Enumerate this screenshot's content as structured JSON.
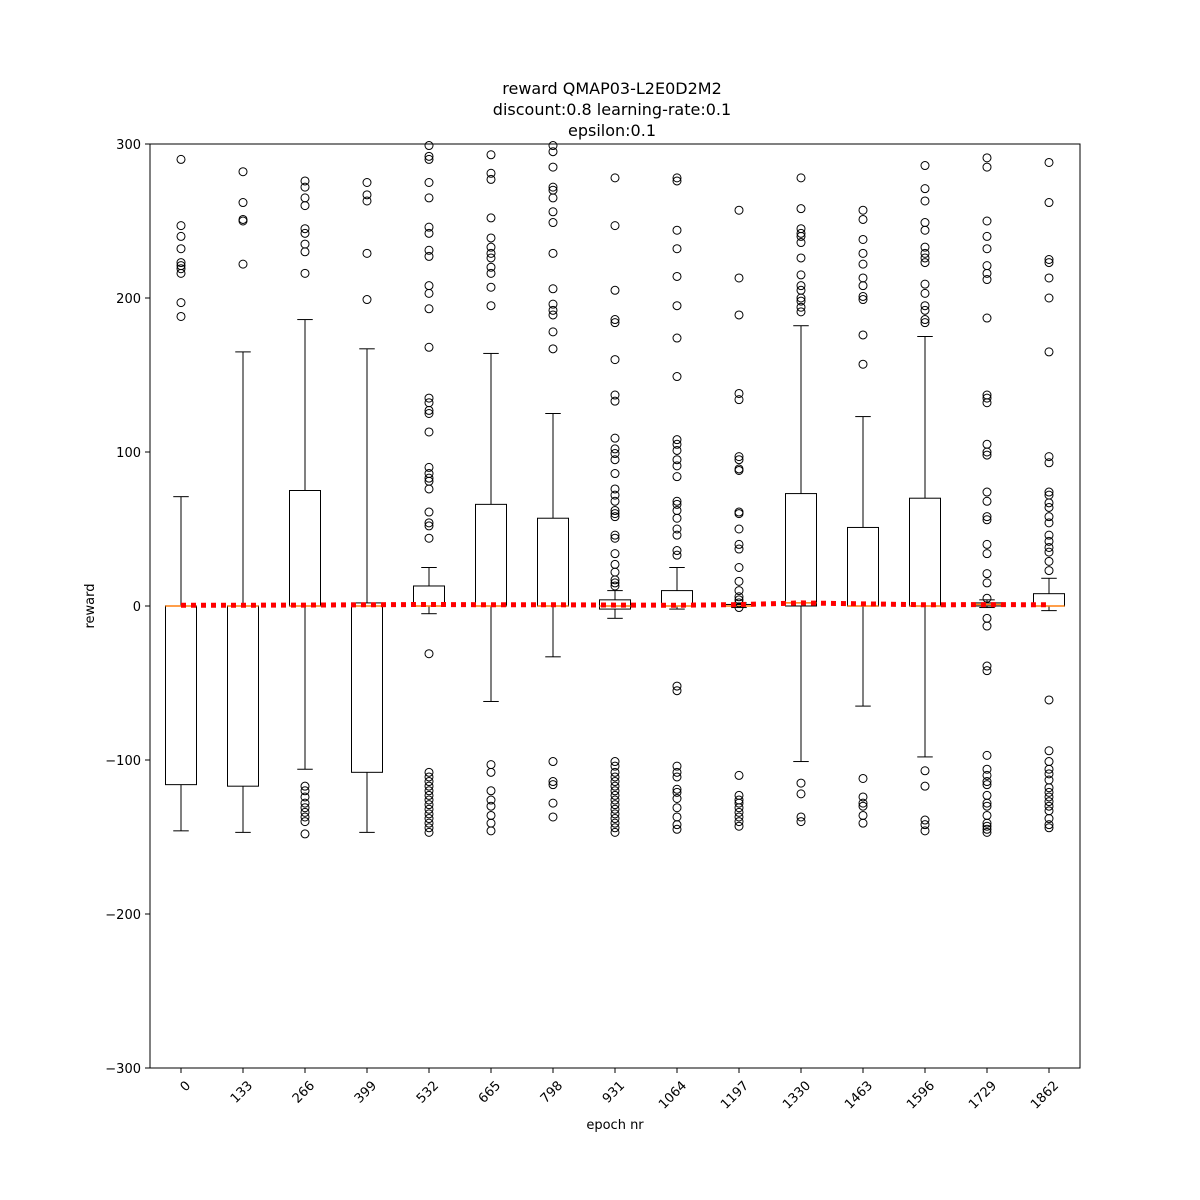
{
  "chart_data": {
    "type": "boxplot",
    "title_lines": [
      "reward QMAP03-L2E0D2M2",
      "discount:0.8 learning-rate:0.1",
      "epsilon:0.1"
    ],
    "xlabel": "epoch nr",
    "ylabel": "reward",
    "ylim": [
      -300,
      300
    ],
    "yticks": [
      -300,
      -200,
      -100,
      0,
      100,
      200,
      300
    ],
    "ytick_labels": [
      "−300",
      "−200",
      "−100",
      "0",
      "100",
      "200",
      "300"
    ],
    "categories": [
      "0",
      "133",
      "266",
      "399",
      "532",
      "665",
      "798",
      "931",
      "1064",
      "1197",
      "1330",
      "1463",
      "1596",
      "1729",
      "1862"
    ],
    "colors": {
      "box": "#000000",
      "median": "#ff7f0e",
      "mean_line": "#ff0000"
    },
    "boxes": [
      {
        "whislo": -146,
        "q1": -116,
        "med": 0,
        "q3": 0,
        "whishi": 71,
        "fliers": [
          290,
          247,
          240,
          232,
          223,
          221,
          219,
          216,
          197,
          188
        ]
      },
      {
        "whislo": -147,
        "q1": -117,
        "med": 0,
        "q3": 0,
        "whishi": 165,
        "fliers": [
          282,
          262,
          251,
          250,
          222
        ]
      },
      {
        "whislo": -106,
        "q1": 0,
        "med": 0,
        "q3": 75,
        "whishi": 186,
        "fliers": [
          276,
          272,
          265,
          260,
          245,
          242,
          235,
          230,
          216,
          -117,
          -120,
          -124,
          -128,
          -131,
          -134,
          -137,
          -140,
          -148
        ]
      },
      {
        "whislo": -147,
        "q1": -108,
        "med": 0,
        "q3": 2,
        "whishi": 167,
        "fliers": [
          275,
          267,
          263,
          229,
          199
        ]
      },
      {
        "whislo": -5,
        "q1": 0,
        "med": 0,
        "q3": 13,
        "whishi": 25,
        "fliers": [
          299,
          292,
          290,
          275,
          265,
          246,
          242,
          231,
          227,
          208,
          203,
          193,
          168,
          135,
          132,
          127,
          125,
          113,
          90,
          86,
          83,
          81,
          76,
          61,
          54,
          52,
          44,
          -31,
          -108,
          -111,
          -114,
          -117,
          -120,
          -123,
          -126,
          -129,
          -132,
          -135,
          -138,
          -141,
          -144,
          -147
        ]
      },
      {
        "whislo": -62,
        "q1": 0,
        "med": 0,
        "q3": 66,
        "whishi": 164,
        "fliers": [
          293,
          281,
          277,
          252,
          239,
          233,
          229,
          226,
          220,
          216,
          207,
          195,
          -103,
          -108,
          -120,
          -126,
          -130,
          -136,
          -141,
          -146
        ]
      },
      {
        "whislo": -33,
        "q1": 0,
        "med": 0,
        "q3": 57,
        "whishi": 125,
        "fliers": [
          299,
          295,
          285,
          272,
          270,
          265,
          256,
          249,
          229,
          206,
          196,
          192,
          189,
          178,
          167,
          -101,
          -114,
          -116,
          -128,
          -137
        ]
      },
      {
        "whislo": -8,
        "q1": -2,
        "med": 0,
        "q3": 4,
        "whishi": 10,
        "fliers": [
          278,
          247,
          205,
          186,
          184,
          160,
          137,
          133,
          109,
          102,
          99,
          95,
          86,
          76,
          72,
          68,
          62,
          60,
          58,
          46,
          44,
          34,
          27,
          22,
          17,
          15,
          13,
          -101,
          -104,
          -108,
          -111,
          -114,
          -117,
          -120,
          -123,
          -126,
          -129,
          -132,
          -135,
          -138,
          -141,
          -144,
          -147
        ]
      },
      {
        "whislo": -2,
        "q1": 0,
        "med": 0,
        "q3": 10,
        "whishi": 25,
        "fliers": [
          278,
          276,
          244,
          232,
          214,
          195,
          174,
          149,
          108,
          105,
          101,
          95,
          91,
          84,
          68,
          66,
          62,
          57,
          50,
          46,
          36,
          33,
          -52,
          -55,
          -104,
          -108,
          -111,
          -119,
          -121,
          -125,
          -131,
          -137,
          -142,
          -145
        ]
      },
      {
        "whislo": -1,
        "q1": 0,
        "med": 0,
        "q3": 1,
        "whishi": 2,
        "fliers": [
          257,
          213,
          189,
          138,
          134,
          97,
          95,
          89,
          88,
          61,
          60,
          50,
          40,
          37,
          25,
          16,
          10,
          6,
          4,
          2,
          -1,
          -110,
          -123,
          -126,
          -128,
          -131,
          -134,
          -137,
          -140,
          -143
        ]
      },
      {
        "whislo": -101,
        "q1": 0,
        "med": 2,
        "q3": 73,
        "whishi": 182,
        "fliers": [
          278,
          258,
          245,
          242,
          240,
          236,
          226,
          215,
          208,
          205,
          200,
          198,
          194,
          191,
          -115,
          -122,
          -137,
          -140
        ]
      },
      {
        "whislo": -65,
        "q1": 0,
        "med": 0,
        "q3": 51,
        "whishi": 123,
        "fliers": [
          257,
          251,
          238,
          229,
          222,
          213,
          208,
          201,
          199,
          176,
          157,
          -112,
          -124,
          -128,
          -130,
          -136,
          -141
        ]
      },
      {
        "whislo": -98,
        "q1": 0,
        "med": 0,
        "q3": 70,
        "whishi": 175,
        "fliers": [
          286,
          271,
          263,
          249,
          244,
          233,
          229,
          226,
          223,
          209,
          203,
          195,
          192,
          186,
          184,
          -107,
          -117,
          -139,
          -142,
          -146
        ]
      },
      {
        "whislo": -1,
        "q1": 0,
        "med": 1,
        "q3": 2,
        "whishi": 4,
        "fliers": [
          291,
          285,
          250,
          240,
          232,
          221,
          216,
          212,
          187,
          137,
          135,
          132,
          105,
          100,
          98,
          74,
          68,
          58,
          56,
          40,
          34,
          21,
          15,
          5,
          -8,
          -13,
          -39,
          -42,
          -97,
          -106,
          -110,
          -114,
          -116,
          -123,
          -128,
          -130,
          -136,
          -141,
          -143,
          -145,
          -147
        ]
      },
      {
        "whislo": -3,
        "q1": 0,
        "med": 0,
        "q3": 8,
        "whishi": 18,
        "fliers": [
          288,
          262,
          225,
          223,
          213,
          200,
          165,
          97,
          93,
          74,
          72,
          67,
          64,
          58,
          54,
          46,
          42,
          38,
          35,
          29,
          23,
          -61,
          -94,
          -101,
          -106,
          -109,
          -113,
          -118,
          -121,
          -124,
          -127,
          -130,
          -133,
          -138,
          -142,
          -144
        ]
      }
    ],
    "mean_line": [
      0.5,
      0.5,
      0.6,
      0.8,
      1.0,
      0.8,
      0.8,
      0.6,
      0.5,
      0.9,
      2.0,
      1.4,
      0.8,
      0.9,
      0.8
    ]
  }
}
